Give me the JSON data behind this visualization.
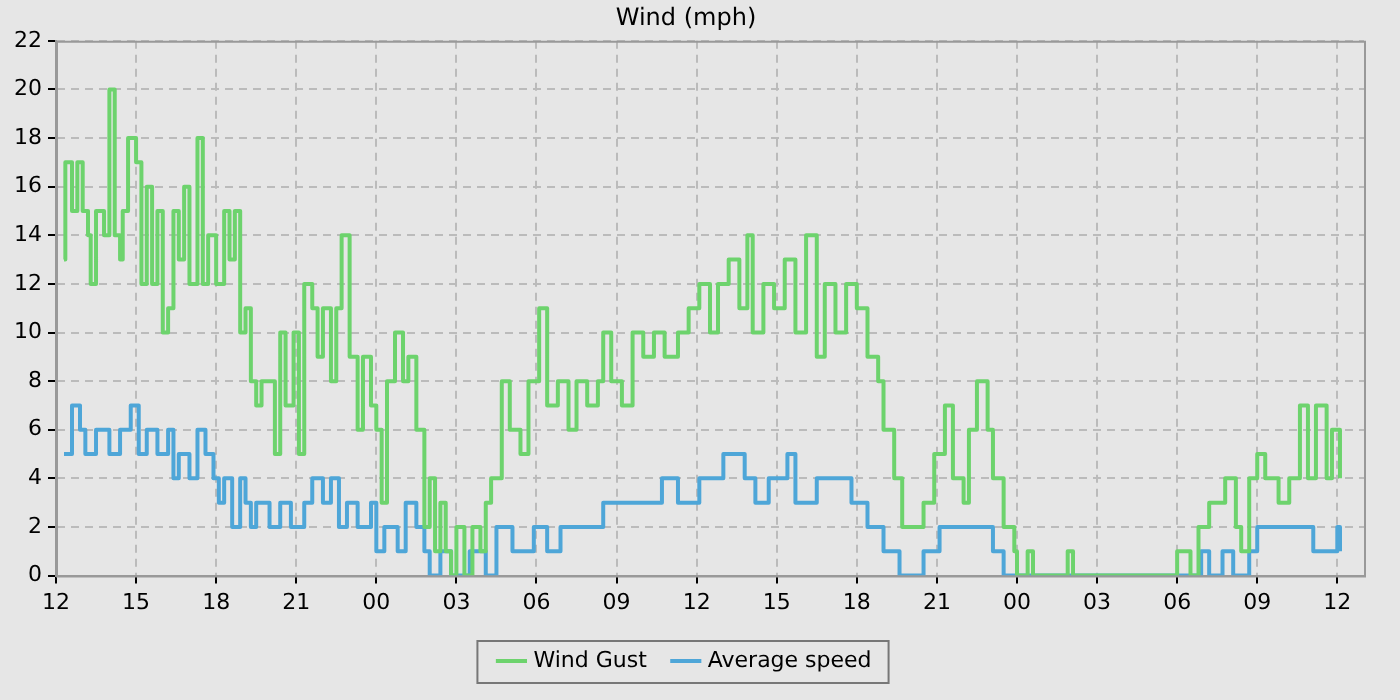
{
  "chart_data": {
    "type": "step",
    "title": "Wind (mph)",
    "xlim": [
      12,
      61
    ],
    "ylim": [
      0,
      22
    ],
    "xticks": [
      {
        "value": 12,
        "label": "12"
      },
      {
        "value": 15,
        "label": "15"
      },
      {
        "value": 18,
        "label": "18"
      },
      {
        "value": 21,
        "label": "21"
      },
      {
        "value": 24,
        "label": "00"
      },
      {
        "value": 27,
        "label": "03"
      },
      {
        "value": 30,
        "label": "06"
      },
      {
        "value": 33,
        "label": "09"
      },
      {
        "value": 36,
        "label": "12"
      },
      {
        "value": 39,
        "label": "15"
      },
      {
        "value": 42,
        "label": "18"
      },
      {
        "value": 45,
        "label": "21"
      },
      {
        "value": 48,
        "label": "00"
      },
      {
        "value": 51,
        "label": "03"
      },
      {
        "value": 54,
        "label": "06"
      },
      {
        "value": 57,
        "label": "09"
      },
      {
        "value": 60,
        "label": "12"
      }
    ],
    "yticks": [
      0,
      2,
      4,
      6,
      8,
      10,
      12,
      14,
      16,
      18,
      20,
      22
    ],
    "grid": true,
    "legend": "bottom",
    "line_style": "solid",
    "marker": "none",
    "series": [
      {
        "name": "Wind Gust",
        "color": "#6dd36d",
        "x": [
          12.3,
          12.35,
          12.6,
          12.8,
          13.0,
          13.2,
          13.3,
          13.5,
          13.8,
          14.0,
          14.2,
          14.4,
          14.5,
          14.7,
          15.0,
          15.2,
          15.4,
          15.6,
          15.8,
          16.0,
          16.2,
          16.4,
          16.6,
          16.8,
          17.0,
          17.3,
          17.5,
          17.7,
          18.0,
          18.3,
          18.5,
          18.7,
          18.9,
          19.1,
          19.3,
          19.5,
          19.7,
          20.0,
          20.2,
          20.4,
          20.6,
          20.9,
          21.1,
          21.3,
          21.6,
          21.8,
          22.0,
          22.3,
          22.5,
          22.7,
          23.0,
          23.3,
          23.5,
          23.8,
          24.0,
          24.2,
          24.4,
          24.7,
          25.0,
          25.2,
          25.5,
          25.8,
          26.0,
          26.2,
          26.4,
          26.6,
          26.8,
          27.0,
          27.3,
          27.6,
          27.9,
          28.1,
          28.3,
          28.7,
          29.0,
          29.4,
          29.7,
          30.1,
          30.4,
          30.8,
          31.2,
          31.5,
          31.9,
          32.3,
          32.5,
          32.8,
          33.2,
          33.6,
          34.0,
          34.4,
          34.8,
          35.3,
          35.7,
          36.1,
          36.5,
          36.8,
          37.2,
          37.6,
          37.9,
          38.1,
          38.5,
          38.9,
          39.3,
          39.7,
          40.1,
          40.5,
          40.8,
          41.2,
          41.6,
          42.0,
          42.4,
          42.8,
          43.0,
          43.4,
          43.7,
          44.1,
          44.5,
          44.9,
          45.1,
          45.3,
          45.6,
          46.0,
          46.2,
          46.5,
          46.9,
          47.1,
          47.5,
          47.9,
          48.0,
          48.4,
          48.6,
          49.9,
          50.1,
          54.0,
          54.5,
          54.8,
          55.2,
          55.8,
          56.2,
          56.4,
          56.7,
          57.0,
          57.3,
          57.8,
          58.2,
          58.6,
          58.9,
          59.2,
          59.6,
          59.8,
          60.1
        ],
        "values": [
          13,
          17,
          15,
          17,
          15,
          14,
          12,
          15,
          14,
          20,
          14,
          13,
          15,
          18,
          17,
          12,
          16,
          12,
          15,
          10,
          11,
          15,
          13,
          16,
          12,
          18,
          12,
          14,
          12,
          15,
          13,
          15,
          10,
          11,
          8,
          7,
          8,
          8,
          5,
          10,
          7,
          10,
          5,
          12,
          11,
          9,
          11,
          8,
          11,
          14,
          9,
          6,
          9,
          7,
          6,
          3,
          8,
          10,
          8,
          9,
          6,
          2,
          4,
          1,
          3,
          1,
          0,
          2,
          0,
          2,
          1,
          3,
          4,
          8,
          6,
          5,
          8,
          11,
          7,
          8,
          6,
          8,
          7,
          8,
          10,
          8,
          7,
          10,
          9,
          10,
          9,
          10,
          11,
          12,
          10,
          12,
          13,
          11,
          14,
          10,
          12,
          11,
          13,
          10,
          14,
          9,
          12,
          10,
          12,
          11,
          9,
          8,
          6,
          4,
          2,
          2,
          3,
          5,
          5,
          7,
          4,
          3,
          6,
          8,
          6,
          4,
          2,
          1,
          0,
          1,
          0,
          1,
          0,
          1,
          0,
          2,
          3,
          4,
          2,
          1,
          4,
          5,
          4,
          3,
          4,
          7,
          4,
          7,
          4,
          6,
          4
        ]
      },
      {
        "name": "Average speed",
        "color": "#4ea6d8",
        "x": [
          12.3,
          12.6,
          12.9,
          13.1,
          13.5,
          14.0,
          14.4,
          14.8,
          15.1,
          15.4,
          15.8,
          16.2,
          16.4,
          16.6,
          17.0,
          17.3,
          17.6,
          17.9,
          18.1,
          18.3,
          18.6,
          18.9,
          19.1,
          19.3,
          19.5,
          20.0,
          20.4,
          20.8,
          21.3,
          21.6,
          22.0,
          22.3,
          22.6,
          22.9,
          23.3,
          23.8,
          24.0,
          24.3,
          24.8,
          25.1,
          25.5,
          25.8,
          26.0,
          26.4,
          26.8,
          27.5,
          28.1,
          28.5,
          29.1,
          29.9,
          30.4,
          30.9,
          32.5,
          34.7,
          35.3,
          36.1,
          37.0,
          37.8,
          38.2,
          38.7,
          39.4,
          39.7,
          40.5,
          41.8,
          42.4,
          43.0,
          43.6,
          44.5,
          45.1,
          46.3,
          47.1,
          47.5,
          54.9,
          55.2,
          55.7,
          56.1,
          56.7,
          57.0,
          58.7,
          59.1,
          60.0,
          60.1
        ],
        "values": [
          5,
          7,
          6,
          5,
          6,
          5,
          6,
          7,
          5,
          6,
          5,
          6,
          4,
          5,
          4,
          6,
          5,
          4,
          3,
          4,
          2,
          4,
          3,
          2,
          3,
          2,
          3,
          2,
          3,
          4,
          3,
          4,
          2,
          3,
          2,
          3,
          1,
          2,
          1,
          3,
          2,
          1,
          0,
          1,
          0,
          1,
          0,
          2,
          1,
          2,
          1,
          2,
          3,
          4,
          3,
          4,
          5,
          4,
          3,
          4,
          5,
          3,
          4,
          3,
          2,
          1,
          0,
          1,
          2,
          2,
          1,
          0,
          1,
          0,
          1,
          0,
          1,
          2,
          2,
          1,
          2,
          1
        ]
      }
    ]
  }
}
